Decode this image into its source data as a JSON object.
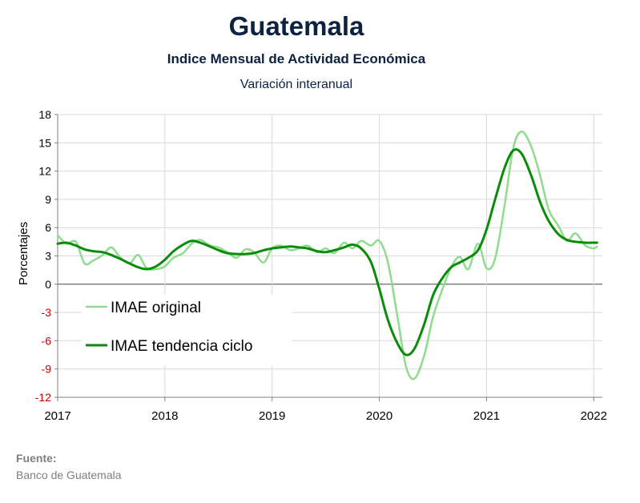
{
  "header": {
    "title": "Guatemala",
    "subtitle": "Indice Mensual de  Actividad Económica",
    "subtitle2": "Variación interanual"
  },
  "source": {
    "label": "Fuente:",
    "text": "Banco de Guatemala"
  },
  "chart_data": {
    "type": "line",
    "ylabel": "Porcentajes",
    "xlabel": "",
    "ylim": [
      -12,
      18
    ],
    "yticks": [
      18,
      15,
      12,
      9,
      6,
      3,
      0,
      -3,
      -6,
      -9,
      -12
    ],
    "ytick_labels": [
      "18",
      "15",
      "12",
      "9",
      "6",
      "3",
      "0",
      "-3",
      "-6",
      "-9",
      "-12"
    ],
    "xlim": [
      2017,
      2022.08
    ],
    "xticks": [
      2017,
      2018,
      2019,
      2020,
      2021,
      2022
    ],
    "xtick_labels": [
      "2017",
      "2018",
      "2019",
      "2020",
      "2021",
      "2022"
    ],
    "grid": true,
    "legend_position": "lower-left",
    "negative_tick_color": "#cc0000",
    "series": [
      {
        "name": "IMAE original",
        "color": "#8fdc8f",
        "x": [
          2017.0,
          2017.08,
          2017.17,
          2017.25,
          2017.33,
          2017.42,
          2017.5,
          2017.58,
          2017.67,
          2017.75,
          2017.83,
          2017.92,
          2018.0,
          2018.08,
          2018.17,
          2018.25,
          2018.33,
          2018.42,
          2018.5,
          2018.58,
          2018.67,
          2018.75,
          2018.83,
          2018.92,
          2019.0,
          2019.08,
          2019.17,
          2019.25,
          2019.33,
          2019.42,
          2019.5,
          2019.58,
          2019.67,
          2019.75,
          2019.83,
          2019.92,
          2020.0,
          2020.08,
          2020.17,
          2020.25,
          2020.33,
          2020.42,
          2020.5,
          2020.58,
          2020.67,
          2020.75,
          2020.83,
          2020.92,
          2021.0,
          2021.08,
          2021.17,
          2021.25,
          2021.33,
          2021.42,
          2021.5,
          2021.58,
          2021.67,
          2021.75,
          2021.83,
          2021.92,
          2022.0,
          2022.03
        ],
        "y": [
          5.2,
          4.3,
          4.5,
          2.2,
          2.5,
          3.1,
          3.9,
          2.9,
          2.2,
          3.1,
          1.7,
          1.6,
          1.9,
          2.8,
          3.3,
          4.3,
          4.7,
          4.1,
          3.9,
          3.4,
          2.8,
          3.7,
          3.4,
          2.3,
          3.8,
          4.1,
          3.6,
          3.8,
          4.1,
          3.4,
          3.8,
          3.3,
          4.4,
          3.8,
          4.6,
          4.1,
          4.6,
          2.3,
          -3.5,
          -8.8,
          -10.0,
          -7.5,
          -3.5,
          -0.8,
          1.8,
          2.9,
          1.6,
          4.3,
          1.7,
          2.7,
          8.5,
          14.5,
          16.2,
          14.5,
          11.5,
          7.9,
          6.2,
          4.6,
          5.4,
          4.1,
          3.8,
          4.0
        ]
      },
      {
        "name": "IMAE tendencia ciclo",
        "color": "#0a8c0a",
        "x": [
          2017.0,
          2017.08,
          2017.17,
          2017.25,
          2017.33,
          2017.42,
          2017.5,
          2017.58,
          2017.67,
          2017.75,
          2017.83,
          2017.92,
          2018.0,
          2018.08,
          2018.17,
          2018.25,
          2018.33,
          2018.42,
          2018.5,
          2018.58,
          2018.67,
          2018.75,
          2018.83,
          2018.92,
          2019.0,
          2019.08,
          2019.17,
          2019.25,
          2019.33,
          2019.42,
          2019.5,
          2019.58,
          2019.67,
          2019.75,
          2019.83,
          2019.92,
          2020.0,
          2020.08,
          2020.17,
          2020.25,
          2020.33,
          2020.42,
          2020.5,
          2020.58,
          2020.67,
          2020.75,
          2020.83,
          2020.92,
          2021.0,
          2021.08,
          2021.17,
          2021.25,
          2021.33,
          2021.42,
          2021.5,
          2021.58,
          2021.67,
          2021.75,
          2021.83,
          2021.92,
          2022.0,
          2022.03
        ],
        "y": [
          4.3,
          4.4,
          4.1,
          3.7,
          3.5,
          3.4,
          3.1,
          2.7,
          2.2,
          1.8,
          1.6,
          1.9,
          2.6,
          3.5,
          4.2,
          4.6,
          4.4,
          4.0,
          3.6,
          3.3,
          3.2,
          3.2,
          3.3,
          3.6,
          3.8,
          3.9,
          4.0,
          3.9,
          3.8,
          3.5,
          3.4,
          3.6,
          3.9,
          4.2,
          3.8,
          2.4,
          -0.5,
          -3.8,
          -6.3,
          -7.5,
          -6.8,
          -4.2,
          -1.2,
          0.5,
          1.8,
          2.3,
          2.8,
          3.6,
          5.8,
          9.0,
          12.4,
          14.2,
          13.8,
          11.4,
          8.7,
          6.7,
          5.3,
          4.7,
          4.5,
          4.4,
          4.4,
          4.4
        ]
      }
    ]
  }
}
